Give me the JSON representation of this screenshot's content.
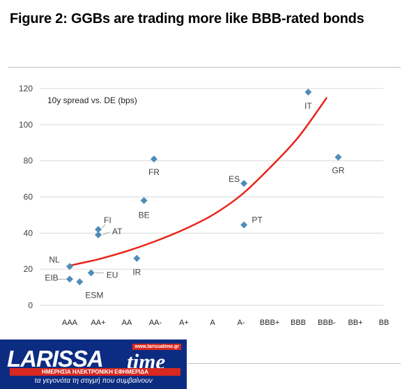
{
  "title": "Figure 2: GGBs are trading more like BBB-rated bonds",
  "logo": {
    "main": "LARISSA",
    "time": "time",
    "url": "www.larissatime.gr",
    "band": "ΗΜΕΡΗΣΙΑ ΗΛΕΚΤΡΟΝΙΚΗ ΕΦΗΜΕΡΙΔΑ",
    "tagline": "τα γεγονότα τη στιγμή που συμβαίνουν"
  },
  "chart_data": {
    "type": "scatter",
    "title": "",
    "annotation": "10y spread vs. DE (bps)",
    "categories": [
      "AAA",
      "AA+",
      "AA",
      "AA-",
      "A+",
      "A",
      "A-",
      "BBB+",
      "BBB",
      "BBB-",
      "BB+",
      "BB"
    ],
    "ylim": [
      0,
      120
    ],
    "yticks": [
      0,
      20,
      40,
      60,
      80,
      100,
      120
    ],
    "grid": true,
    "points": [
      {
        "label": "NL",
        "x": 0.0,
        "y": 21.5
      },
      {
        "label": "EIB",
        "x": 0.0,
        "y": 14.5
      },
      {
        "label": "ESM",
        "x": 0.35,
        "y": 13
      },
      {
        "label": "EU",
        "x": 0.75,
        "y": 18
      },
      {
        "label": "FI",
        "x": 1.0,
        "y": 42
      },
      {
        "label": "AT",
        "x": 1.0,
        "y": 39
      },
      {
        "label": "IR",
        "x": 2.35,
        "y": 26
      },
      {
        "label": "BE",
        "x": 2.6,
        "y": 58
      },
      {
        "label": "FR",
        "x": 2.95,
        "y": 81
      },
      {
        "label": "ES",
        "x": 6.1,
        "y": 67.5
      },
      {
        "label": "PT",
        "x": 6.1,
        "y": 44.5
      },
      {
        "label": "IT",
        "x": 8.35,
        "y": 118
      },
      {
        "label": "GR",
        "x": 9.4,
        "y": 82
      }
    ],
    "trendline": {
      "color": "#e8251c",
      "points": [
        [
          0,
          22
        ],
        [
          1,
          25.5
        ],
        [
          2,
          30
        ],
        [
          3,
          35.5
        ],
        [
          4,
          42
        ],
        [
          5,
          50
        ],
        [
          6,
          61
        ],
        [
          7,
          76
        ],
        [
          8,
          93
        ],
        [
          9,
          115
        ]
      ]
    },
    "marker_color": "#4f8db8"
  }
}
